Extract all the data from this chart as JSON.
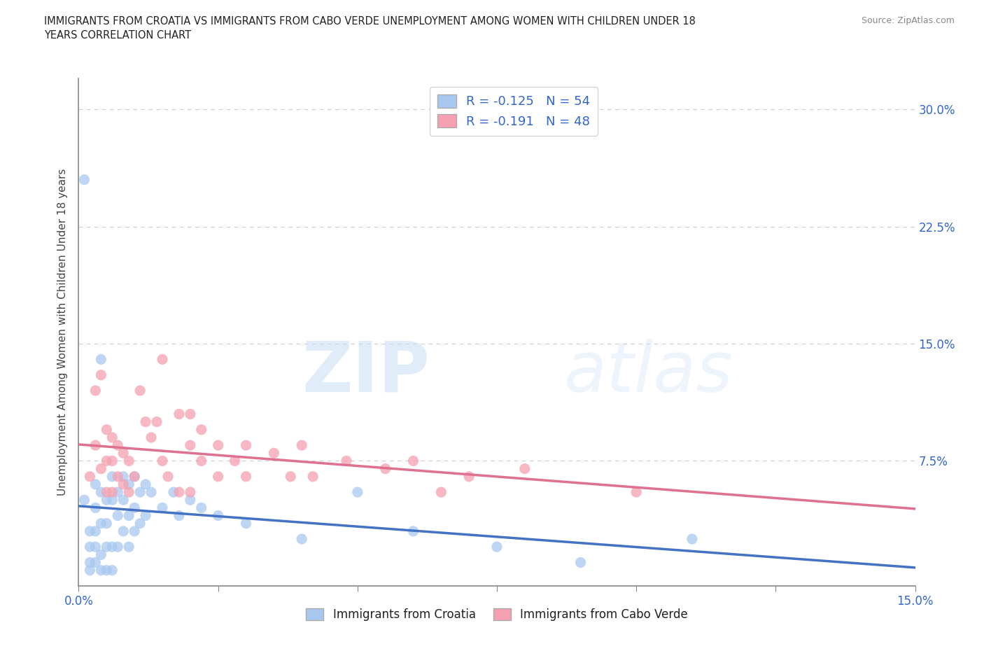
{
  "title": "IMMIGRANTS FROM CROATIA VS IMMIGRANTS FROM CABO VERDE UNEMPLOYMENT AMONG WOMEN WITH CHILDREN UNDER 18\nYEARS CORRELATION CHART",
  "source": "Source: ZipAtlas.com",
  "ylabel": "Unemployment Among Women with Children Under 18 years",
  "xlim": [
    0.0,
    0.15
  ],
  "ylim": [
    -0.005,
    0.32
  ],
  "ytick_labels_right": [
    "30.0%",
    "22.5%",
    "15.0%",
    "7.5%",
    ""
  ],
  "ytick_vals_right": [
    0.3,
    0.225,
    0.15,
    0.075,
    0.0
  ],
  "croatia_color": "#a8c8f0",
  "cabo_verde_color": "#f5a0b0",
  "croatia_trend_color": "#4472c4",
  "cabo_verde_trend_color": "#e07090",
  "r_croatia": -0.125,
  "n_croatia": 54,
  "r_cabo_verde": -0.191,
  "n_cabo_verde": 48,
  "watermark_zip": "ZIP",
  "watermark_atlas": "atlas",
  "background_color": "#ffffff",
  "grid_color": "#cccccc",
  "croatia_scatter": [
    [
      0.001,
      0.255
    ],
    [
      0.001,
      0.05
    ],
    [
      0.002,
      0.03
    ],
    [
      0.002,
      0.02
    ],
    [
      0.002,
      0.01
    ],
    [
      0.002,
      0.005
    ],
    [
      0.003,
      0.06
    ],
    [
      0.003,
      0.045
    ],
    [
      0.003,
      0.03
    ],
    [
      0.003,
      0.02
    ],
    [
      0.003,
      0.01
    ],
    [
      0.004,
      0.14
    ],
    [
      0.004,
      0.055
    ],
    [
      0.004,
      0.035
    ],
    [
      0.004,
      0.015
    ],
    [
      0.004,
      0.005
    ],
    [
      0.005,
      0.05
    ],
    [
      0.005,
      0.035
    ],
    [
      0.005,
      0.02
    ],
    [
      0.005,
      0.005
    ],
    [
      0.006,
      0.065
    ],
    [
      0.006,
      0.05
    ],
    [
      0.006,
      0.02
    ],
    [
      0.006,
      0.005
    ],
    [
      0.007,
      0.055
    ],
    [
      0.007,
      0.04
    ],
    [
      0.007,
      0.02
    ],
    [
      0.008,
      0.065
    ],
    [
      0.008,
      0.05
    ],
    [
      0.008,
      0.03
    ],
    [
      0.009,
      0.06
    ],
    [
      0.009,
      0.04
    ],
    [
      0.009,
      0.02
    ],
    [
      0.01,
      0.065
    ],
    [
      0.01,
      0.045
    ],
    [
      0.01,
      0.03
    ],
    [
      0.011,
      0.055
    ],
    [
      0.011,
      0.035
    ],
    [
      0.012,
      0.06
    ],
    [
      0.012,
      0.04
    ],
    [
      0.013,
      0.055
    ],
    [
      0.015,
      0.045
    ],
    [
      0.017,
      0.055
    ],
    [
      0.018,
      0.04
    ],
    [
      0.02,
      0.05
    ],
    [
      0.022,
      0.045
    ],
    [
      0.025,
      0.04
    ],
    [
      0.03,
      0.035
    ],
    [
      0.04,
      0.025
    ],
    [
      0.05,
      0.055
    ],
    [
      0.06,
      0.03
    ],
    [
      0.075,
      0.02
    ],
    [
      0.09,
      0.01
    ],
    [
      0.11,
      0.025
    ]
  ],
  "cabo_verde_scatter": [
    [
      0.002,
      0.065
    ],
    [
      0.003,
      0.12
    ],
    [
      0.003,
      0.085
    ],
    [
      0.004,
      0.13
    ],
    [
      0.004,
      0.07
    ],
    [
      0.005,
      0.095
    ],
    [
      0.005,
      0.075
    ],
    [
      0.005,
      0.055
    ],
    [
      0.006,
      0.09
    ],
    [
      0.006,
      0.075
    ],
    [
      0.006,
      0.055
    ],
    [
      0.007,
      0.085
    ],
    [
      0.007,
      0.065
    ],
    [
      0.008,
      0.08
    ],
    [
      0.008,
      0.06
    ],
    [
      0.009,
      0.075
    ],
    [
      0.009,
      0.055
    ],
    [
      0.01,
      0.065
    ],
    [
      0.011,
      0.12
    ],
    [
      0.012,
      0.1
    ],
    [
      0.013,
      0.09
    ],
    [
      0.014,
      0.1
    ],
    [
      0.015,
      0.14
    ],
    [
      0.015,
      0.075
    ],
    [
      0.016,
      0.065
    ],
    [
      0.018,
      0.105
    ],
    [
      0.018,
      0.055
    ],
    [
      0.02,
      0.105
    ],
    [
      0.02,
      0.085
    ],
    [
      0.02,
      0.055
    ],
    [
      0.022,
      0.095
    ],
    [
      0.022,
      0.075
    ],
    [
      0.025,
      0.085
    ],
    [
      0.025,
      0.065
    ],
    [
      0.028,
      0.075
    ],
    [
      0.03,
      0.085
    ],
    [
      0.03,
      0.065
    ],
    [
      0.035,
      0.08
    ],
    [
      0.038,
      0.065
    ],
    [
      0.04,
      0.085
    ],
    [
      0.042,
      0.065
    ],
    [
      0.048,
      0.075
    ],
    [
      0.055,
      0.07
    ],
    [
      0.06,
      0.075
    ],
    [
      0.065,
      0.055
    ],
    [
      0.07,
      0.065
    ],
    [
      0.08,
      0.07
    ],
    [
      0.1,
      0.055
    ]
  ]
}
